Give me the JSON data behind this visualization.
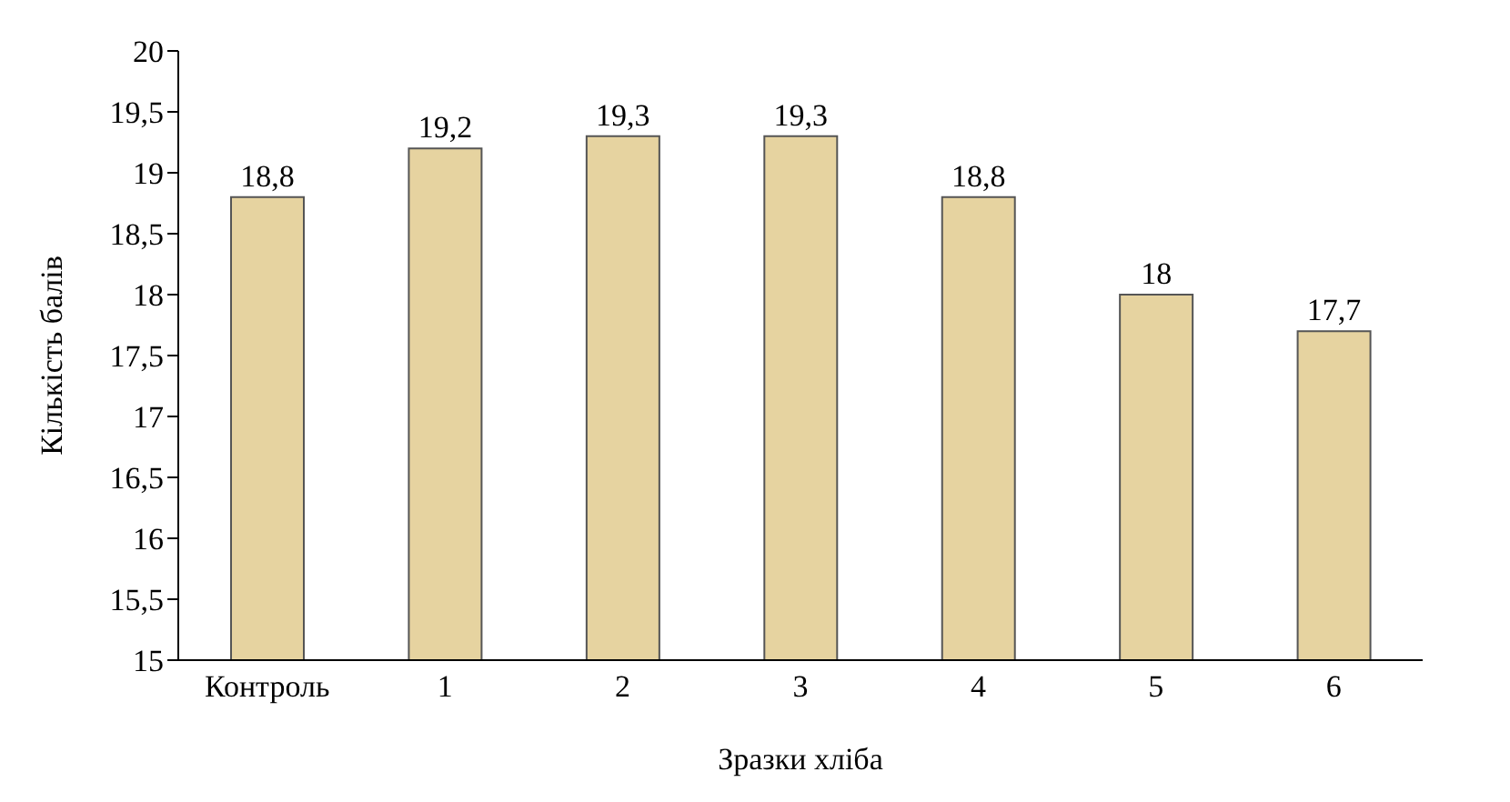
{
  "chart_data": {
    "type": "bar",
    "xlabel": "Зразки хліба",
    "ylabel": "Кількість балів",
    "categories": [
      "Контроль",
      "1",
      "2",
      "3",
      "4",
      "5",
      "6"
    ],
    "values": [
      18.8,
      19.2,
      19.3,
      19.3,
      18.8,
      18,
      17.7
    ],
    "value_labels": [
      "18,8",
      "19,2",
      "19,3",
      "19,3",
      "18,8",
      "18",
      "17,7"
    ],
    "color": "#e6d3a0",
    "ylim": [
      15,
      20
    ],
    "yticks": [
      15,
      {
        "value": 15.5,
        "label": "15,5"
      },
      16,
      {
        "value": 16.5,
        "label": "16,5"
      },
      17,
      {
        "value": 17.5,
        "label": "17,5"
      },
      18,
      {
        "value": 18.5,
        "label": "18,5"
      },
      19,
      {
        "value": 19.5,
        "label": "19,5"
      },
      20
    ],
    "grid": false,
    "legend": false
  }
}
